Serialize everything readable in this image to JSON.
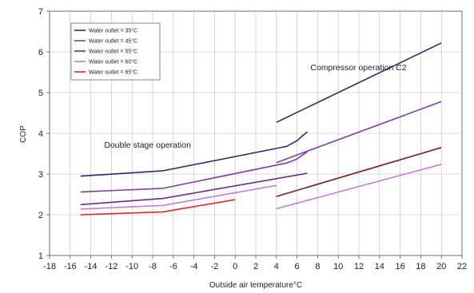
{
  "chart_data": {
    "type": "line",
    "xlabel": "Outside air temperature°C",
    "ylabel": "COP",
    "xlim": [
      -18,
      22
    ],
    "ylim": [
      1,
      7
    ],
    "xticks": [
      -18,
      -16,
      -14,
      -12,
      -10,
      -8,
      -6,
      -4,
      -2,
      0,
      2,
      4,
      6,
      8,
      10,
      12,
      14,
      16,
      18,
      20,
      22
    ],
    "x_tick_labels": [
      "-18",
      "-16",
      "-14",
      "-12",
      "-10",
      "-8",
      "-6",
      "-4",
      "-2",
      "0",
      "2",
      "4",
      "6",
      "8",
      "10",
      "12",
      "14",
      "16",
      "18",
      "20",
      "22"
    ],
    "yticks": [
      1,
      2,
      3,
      4,
      5,
      6,
      7
    ],
    "y_tick_labels": [
      "1",
      "2",
      "3",
      "4",
      "5",
      "6",
      "7"
    ],
    "grid": true,
    "legend_position": "top-left",
    "annotations": [
      {
        "text": "Double stage operation",
        "x": -12.7,
        "y": 3.65
      },
      {
        "text": "Compressor operation C2",
        "x": 7.3,
        "y": 5.55
      }
    ],
    "series": [
      {
        "name": "Water  outlet = 35°C",
        "color": "#2e2a6e",
        "legend": true,
        "x": [
          -15,
          -7,
          4,
          5,
          6,
          7
        ],
        "y": [
          2.95,
          3.08,
          3.63,
          3.68,
          3.82,
          4.04
        ]
      },
      {
        "name": "",
        "color": "#2e2a6e",
        "legend": false,
        "x": [
          4,
          20
        ],
        "y": [
          4.27,
          6.22
        ]
      },
      {
        "name": "Water  outlet = 45°C",
        "color": "#7d3fa6",
        "legend": true,
        "x": [
          -15,
          -7,
          4,
          5,
          6,
          7
        ],
        "y": [
          2.56,
          2.65,
          3.22,
          3.27,
          3.37,
          3.55
        ]
      },
      {
        "name": "",
        "color": "#7d3fa6",
        "legend": false,
        "x": [
          4,
          20
        ],
        "y": [
          3.28,
          4.78
        ]
      },
      {
        "name": "Water  outlet = 55°C",
        "color": "#6a2a8a",
        "legend": true,
        "x": [
          -15,
          -7,
          7
        ],
        "y": [
          2.25,
          2.4,
          3.02
        ]
      },
      {
        "name": "",
        "color": "#7a1a2a",
        "legend": false,
        "x": [
          4,
          20
        ],
        "y": [
          2.45,
          3.65
        ]
      },
      {
        "name": "Water  outlet = 60°C",
        "color": "#c77ad6",
        "legend": true,
        "x": [
          -15,
          -7,
          4
        ],
        "y": [
          2.14,
          2.23,
          2.72
        ]
      },
      {
        "name": "",
        "color": "#c77ad6",
        "legend": false,
        "x": [
          4,
          20
        ],
        "y": [
          2.15,
          3.24
        ]
      },
      {
        "name": "Water  outlet = 65°C",
        "color": "#e0262b",
        "legend": true,
        "x": [
          -15,
          -7,
          0
        ],
        "y": [
          2.0,
          2.07,
          2.37
        ]
      }
    ]
  }
}
